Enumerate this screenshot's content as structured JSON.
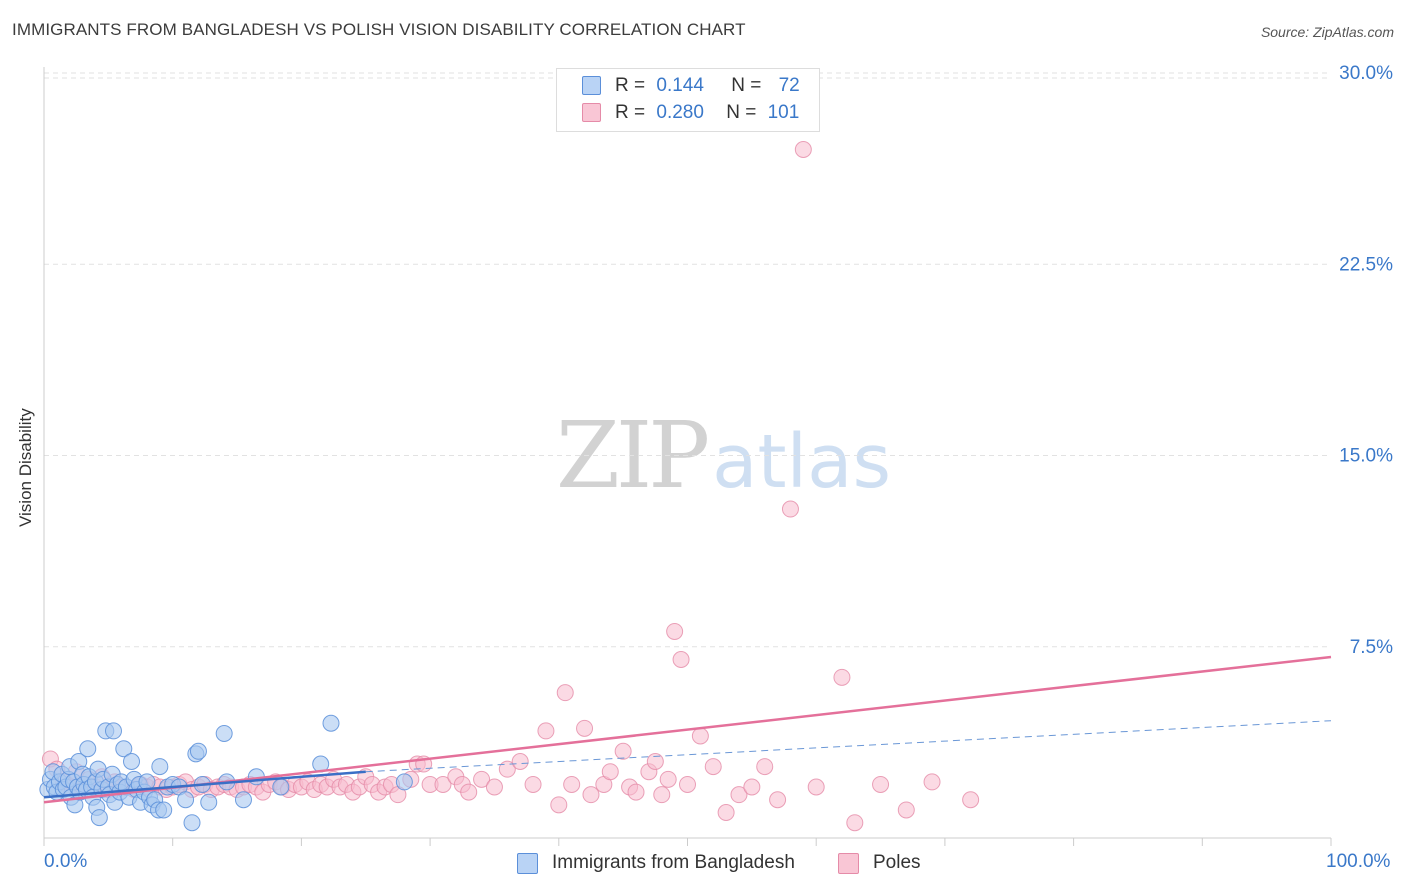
{
  "header": {
    "title": "IMMIGRANTS FROM BANGLADESH VS POLISH VISION DISABILITY CORRELATION CHART",
    "source": "Source: ZipAtlas.com"
  },
  "watermark": {
    "zip": "ZIP",
    "atlas": "atlas"
  },
  "legend": {
    "r_label": "R =",
    "n_label": "N =",
    "series": [
      {
        "name": "Immigrants from Bangladesh",
        "r": "0.144",
        "n": "72",
        "fill": "#a9c8f0",
        "stroke": "#5b8fd9"
      },
      {
        "name": "Poles",
        "r": "0.280",
        "n": "101",
        "fill": "#f8bccd",
        "stroke": "#e58ba8"
      }
    ]
  },
  "colors": {
    "accent_blue": "#3a78c9",
    "blue_line": "#3a6fc6",
    "pink_line": "#e4709a",
    "grid": "#e2e2e2"
  },
  "chart_data": {
    "type": "scatter",
    "title": "IMMIGRANTS FROM BANGLADESH VS POLISH VISION DISABILITY CORRELATION CHART",
    "xlabel": "",
    "ylabel": "Vision Disability",
    "xlim": [
      0,
      100
    ],
    "ylim": [
      0,
      31
    ],
    "x_tick_labels": [
      "0.0%",
      "100.0%"
    ],
    "y_ticks": [
      7.5,
      15.0,
      22.5,
      30.0
    ],
    "y_tick_labels": [
      "7.5%",
      "15.0%",
      "22.5%",
      "30.0%"
    ],
    "grid": true,
    "legend_position": "top-center",
    "series": [
      {
        "name": "Immigrants from Bangladesh",
        "r": 0.144,
        "n": 72,
        "trend_solid": {
          "x": [
            0,
            25
          ],
          "y": [
            1.6,
            2.6
          ]
        },
        "trend_dashed": {
          "x": [
            25,
            100
          ],
          "y": [
            2.6,
            4.6
          ]
        },
        "points": [
          [
            0.3,
            1.9
          ],
          [
            0.5,
            2.3
          ],
          [
            0.7,
            2.6
          ],
          [
            0.8,
            2.0
          ],
          [
            1.0,
            1.8
          ],
          [
            1.2,
            2.2
          ],
          [
            1.4,
            2.5
          ],
          [
            1.5,
            1.9
          ],
          [
            1.7,
            2.0
          ],
          [
            1.9,
            2.3
          ],
          [
            2.0,
            2.8
          ],
          [
            2.1,
            1.6
          ],
          [
            2.3,
            2.2
          ],
          [
            2.4,
            1.3
          ],
          [
            2.6,
            2.0
          ],
          [
            2.7,
            3.0
          ],
          [
            2.8,
            1.8
          ],
          [
            3.0,
            2.5
          ],
          [
            3.1,
            2.1
          ],
          [
            3.3,
            1.9
          ],
          [
            3.4,
            3.5
          ],
          [
            3.5,
            2.4
          ],
          [
            3.7,
            2.0
          ],
          [
            3.8,
            1.6
          ],
          [
            4.0,
            2.2
          ],
          [
            4.1,
            1.2
          ],
          [
            4.2,
            2.7
          ],
          [
            4.3,
            0.8
          ],
          [
            4.5,
            1.9
          ],
          [
            4.6,
            2.3
          ],
          [
            4.8,
            4.2
          ],
          [
            5.0,
            2.0
          ],
          [
            5.1,
            1.7
          ],
          [
            5.3,
            2.5
          ],
          [
            5.4,
            4.2
          ],
          [
            5.5,
            1.4
          ],
          [
            5.7,
            2.1
          ],
          [
            5.9,
            1.8
          ],
          [
            6.0,
            2.2
          ],
          [
            6.2,
            3.5
          ],
          [
            6.4,
            2.0
          ],
          [
            6.6,
            1.6
          ],
          [
            6.8,
            3.0
          ],
          [
            7.0,
            2.3
          ],
          [
            7.2,
            1.9
          ],
          [
            7.4,
            2.1
          ],
          [
            7.5,
            1.4
          ],
          [
            7.8,
            1.8
          ],
          [
            8.0,
            2.2
          ],
          [
            8.2,
            1.6
          ],
          [
            8.4,
            1.3
          ],
          [
            8.6,
            1.5
          ],
          [
            8.9,
            1.1
          ],
          [
            9.0,
            2.8
          ],
          [
            9.3,
            1.1
          ],
          [
            9.6,
            2.0
          ],
          [
            10.0,
            2.1
          ],
          [
            10.5,
            2.0
          ],
          [
            11.0,
            1.5
          ],
          [
            11.5,
            0.6
          ],
          [
            11.8,
            3.3
          ],
          [
            12.0,
            3.4
          ],
          [
            12.3,
            2.1
          ],
          [
            12.8,
            1.4
          ],
          [
            14.0,
            4.1
          ],
          [
            14.2,
            2.2
          ],
          [
            15.5,
            1.5
          ],
          [
            16.5,
            2.4
          ],
          [
            18.4,
            2.0
          ],
          [
            21.5,
            2.9
          ],
          [
            22.3,
            4.5
          ],
          [
            28.0,
            2.2
          ]
        ]
      },
      {
        "name": "Poles",
        "r": 0.28,
        "n": 101,
        "trend_solid": {
          "x": [
            0,
            100
          ],
          "y": [
            1.4,
            7.1
          ]
        },
        "points": [
          [
            0.5,
            3.1
          ],
          [
            1.0,
            2.7
          ],
          [
            1.5,
            2.2
          ],
          [
            2.0,
            2.0
          ],
          [
            2.5,
            2.6
          ],
          [
            3.0,
            1.9
          ],
          [
            3.5,
            2.3
          ],
          [
            4.0,
            2.0
          ],
          [
            4.5,
            2.4
          ],
          [
            5.0,
            1.9
          ],
          [
            5.5,
            2.2
          ],
          [
            6.0,
            2.0
          ],
          [
            7.0,
            1.9
          ],
          [
            7.5,
            2.1
          ],
          [
            8.0,
            2.0
          ],
          [
            8.5,
            2.1
          ],
          [
            9.0,
            2.0
          ],
          [
            9.5,
            1.9
          ],
          [
            10.0,
            2.0
          ],
          [
            10.5,
            2.1
          ],
          [
            11.0,
            2.2
          ],
          [
            11.5,
            1.9
          ],
          [
            12.0,
            2.0
          ],
          [
            12.5,
            2.1
          ],
          [
            13.0,
            1.9
          ],
          [
            13.5,
            2.0
          ],
          [
            14.0,
            2.1
          ],
          [
            14.5,
            2.0
          ],
          [
            15.0,
            1.9
          ],
          [
            15.5,
            2.0
          ],
          [
            16.0,
            2.1
          ],
          [
            16.5,
            2.0
          ],
          [
            17.0,
            1.8
          ],
          [
            17.5,
            2.1
          ],
          [
            18.0,
            2.2
          ],
          [
            18.5,
            2.0
          ],
          [
            19.0,
            1.9
          ],
          [
            19.5,
            2.1
          ],
          [
            20.0,
            2.0
          ],
          [
            20.5,
            2.2
          ],
          [
            21.0,
            1.9
          ],
          [
            21.5,
            2.1
          ],
          [
            22.0,
            2.0
          ],
          [
            22.5,
            2.3
          ],
          [
            23.0,
            2.0
          ],
          [
            23.5,
            2.1
          ],
          [
            24.0,
            1.8
          ],
          [
            24.5,
            2.0
          ],
          [
            25.0,
            2.4
          ],
          [
            25.5,
            2.1
          ],
          [
            26.0,
            1.8
          ],
          [
            26.5,
            2.0
          ],
          [
            27.0,
            2.1
          ],
          [
            27.5,
            1.7
          ],
          [
            28.5,
            2.3
          ],
          [
            29.0,
            2.9
          ],
          [
            29.5,
            2.9
          ],
          [
            30.0,
            2.1
          ],
          [
            31.0,
            2.1
          ],
          [
            32.0,
            2.4
          ],
          [
            32.5,
            2.1
          ],
          [
            33.0,
            1.8
          ],
          [
            34.0,
            2.3
          ],
          [
            35.0,
            2.0
          ],
          [
            36.0,
            2.7
          ],
          [
            37.0,
            3.0
          ],
          [
            38.0,
            2.1
          ],
          [
            39.0,
            4.2
          ],
          [
            40.0,
            1.3
          ],
          [
            40.5,
            5.7
          ],
          [
            41.0,
            2.1
          ],
          [
            42.0,
            4.3
          ],
          [
            42.5,
            1.7
          ],
          [
            43.5,
            2.1
          ],
          [
            44.0,
            2.6
          ],
          [
            45.0,
            3.4
          ],
          [
            45.5,
            2.0
          ],
          [
            46.0,
            1.8
          ],
          [
            47.0,
            2.6
          ],
          [
            47.5,
            3.0
          ],
          [
            48.0,
            1.7
          ],
          [
            48.5,
            2.3
          ],
          [
            49.0,
            8.1
          ],
          [
            49.5,
            7.0
          ],
          [
            50.0,
            2.1
          ],
          [
            51.0,
            4.0
          ],
          [
            52.0,
            2.8
          ],
          [
            53.0,
            1.0
          ],
          [
            54.0,
            1.7
          ],
          [
            55.0,
            2.0
          ],
          [
            56.0,
            2.8
          ],
          [
            57.0,
            1.5
          ],
          [
            58.0,
            12.9
          ],
          [
            59.0,
            27.0
          ],
          [
            60.0,
            2.0
          ],
          [
            62.0,
            6.3
          ],
          [
            63.0,
            0.6
          ],
          [
            65.0,
            2.1
          ],
          [
            67.0,
            1.1
          ],
          [
            69.0,
            2.2
          ],
          [
            72.0,
            1.5
          ]
        ]
      }
    ]
  }
}
